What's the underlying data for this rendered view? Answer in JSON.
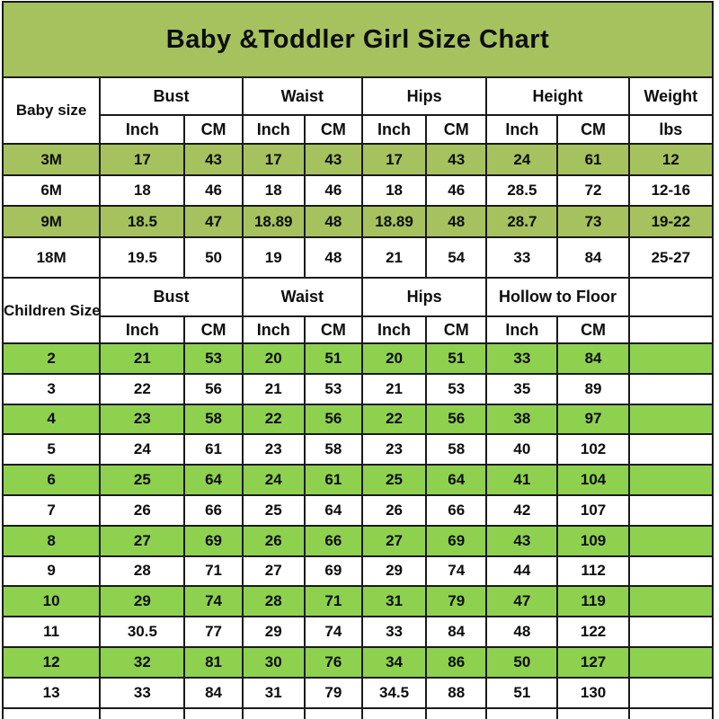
{
  "title": "Baby &Toddler Girl Size Chart",
  "colors": {
    "olive_green": "#a6c25f",
    "bright_green": "#8ed14f",
    "border": "#1a1a1a",
    "header_bg": "#ffffff",
    "text": "#0d0d0d"
  },
  "chart_data": {
    "type": "table",
    "title": "Baby &Toddler Girl Size Chart",
    "sections": [
      {
        "label": "Baby size",
        "groups": [
          "Bust",
          "Waist",
          "Hips",
          "Height"
        ],
        "subheaders": [
          "Inch",
          "CM",
          "Inch",
          "CM",
          "Inch",
          "CM",
          "Inch",
          "CM"
        ],
        "last_col": {
          "label": "Weight",
          "sub": "lbs"
        },
        "rows": [
          {
            "size": "3M",
            "highlight": true,
            "values": [
              "17",
              "43",
              "17",
              "43",
              "17",
              "43",
              "24",
              "61",
              "12"
            ]
          },
          {
            "size": "6M",
            "highlight": false,
            "values": [
              "18",
              "46",
              "18",
              "46",
              "18",
              "46",
              "28.5",
              "72",
              "12-16"
            ]
          },
          {
            "size": "9M",
            "highlight": true,
            "values": [
              "18.5",
              "47",
              "18.89",
              "48",
              "18.89",
              "48",
              "28.7",
              "73",
              "19-22"
            ]
          },
          {
            "size": "18M",
            "highlight": false,
            "values": [
              "19.5",
              "50",
              "19",
              "48",
              "21",
              "54",
              "33",
              "84",
              "25-27"
            ]
          }
        ]
      },
      {
        "label": "Children Size",
        "groups": [
          "Bust",
          "Waist",
          "Hips",
          "Hollow to Floor"
        ],
        "subheaders": [
          "Inch",
          "CM",
          "Inch",
          "CM",
          "Inch",
          "CM",
          "Inch",
          "CM"
        ],
        "last_col": {
          "label": "",
          "sub": ""
        },
        "rows": [
          {
            "size": "2",
            "highlight": true,
            "values": [
              "21",
              "53",
              "20",
              "51",
              "20",
              "51",
              "33",
              "84",
              ""
            ]
          },
          {
            "size": "3",
            "highlight": false,
            "values": [
              "22",
              "56",
              "21",
              "53",
              "21",
              "53",
              "35",
              "89",
              ""
            ]
          },
          {
            "size": "4",
            "highlight": true,
            "values": [
              "23",
              "58",
              "22",
              "56",
              "22",
              "56",
              "38",
              "97",
              ""
            ]
          },
          {
            "size": "5",
            "highlight": false,
            "values": [
              "24",
              "61",
              "23",
              "58",
              "23",
              "58",
              "40",
              "102",
              ""
            ]
          },
          {
            "size": "6",
            "highlight": true,
            "values": [
              "25",
              "64",
              "24",
              "61",
              "25",
              "64",
              "41",
              "104",
              ""
            ]
          },
          {
            "size": "7",
            "highlight": false,
            "values": [
              "26",
              "66",
              "25",
              "64",
              "26",
              "66",
              "42",
              "107",
              ""
            ]
          },
          {
            "size": "8",
            "highlight": true,
            "values": [
              "27",
              "69",
              "26",
              "66",
              "27",
              "69",
              "43",
              "109",
              ""
            ]
          },
          {
            "size": "9",
            "highlight": false,
            "values": [
              "28",
              "71",
              "27",
              "69",
              "29",
              "74",
              "44",
              "112",
              ""
            ]
          },
          {
            "size": "10",
            "highlight": true,
            "values": [
              "29",
              "74",
              "28",
              "71",
              "31",
              "79",
              "47",
              "119",
              ""
            ]
          },
          {
            "size": "11",
            "highlight": false,
            "values": [
              "30.5",
              "77",
              "29",
              "74",
              "33",
              "84",
              "48",
              "122",
              ""
            ]
          },
          {
            "size": "12",
            "highlight": true,
            "values": [
              "32",
              "81",
              "30",
              "76",
              "34",
              "86",
              "50",
              "127",
              ""
            ]
          },
          {
            "size": "13",
            "highlight": false,
            "values": [
              "33",
              "84",
              "31",
              "79",
              "34.5",
              "88",
              "51",
              "130",
              ""
            ]
          }
        ]
      }
    ]
  }
}
